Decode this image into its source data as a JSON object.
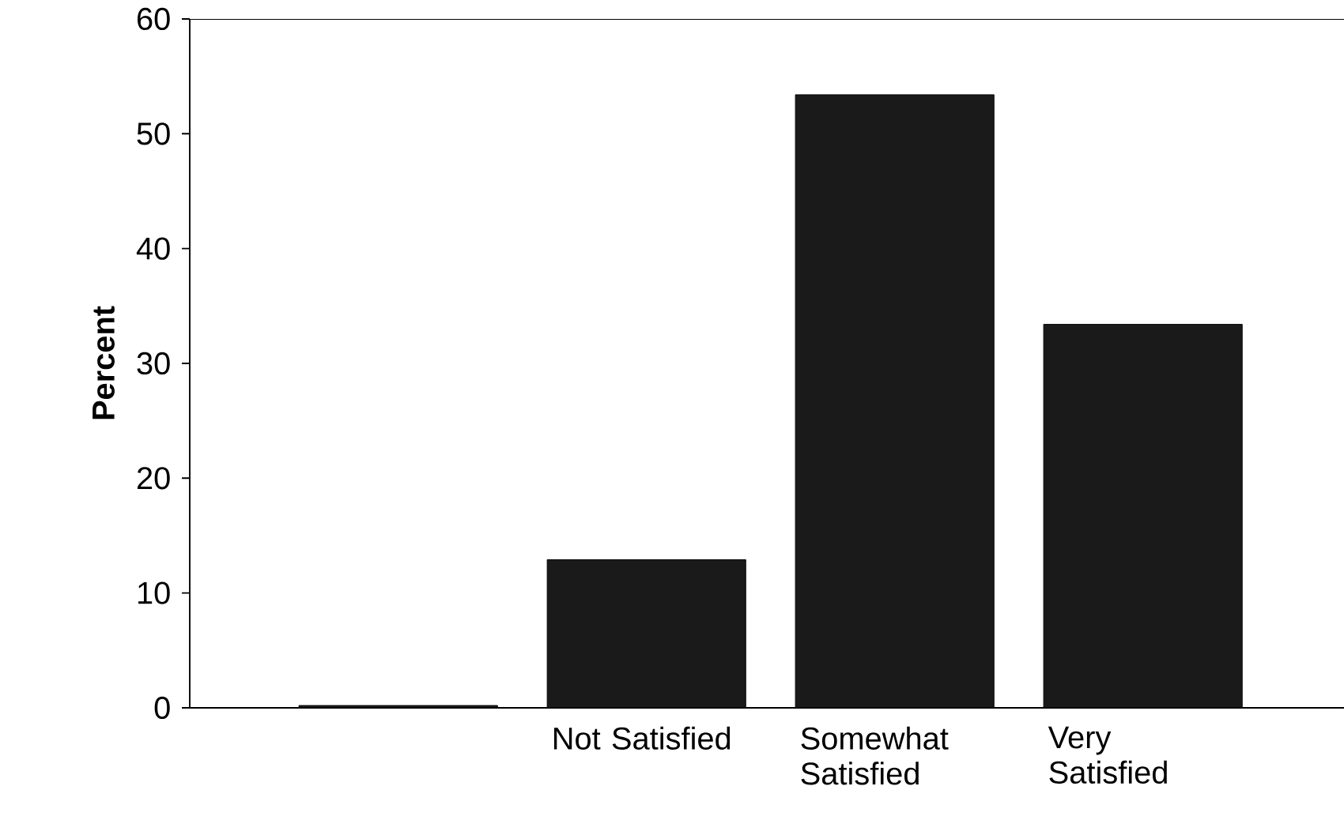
{
  "chart_data": {
    "type": "bar",
    "ylabel": "Percent",
    "categories": [
      null,
      "Not Satisfied",
      "Somewhat Satisfied",
      "Very Satisfied"
    ],
    "values": [
      0.2,
      12.9,
      53.4,
      33.4
    ],
    "color": "#1a1a1a",
    "ylim": [
      0,
      60
    ],
    "yticks": [
      0,
      10,
      20,
      30,
      40,
      50,
      60
    ],
    "grid": false
  }
}
